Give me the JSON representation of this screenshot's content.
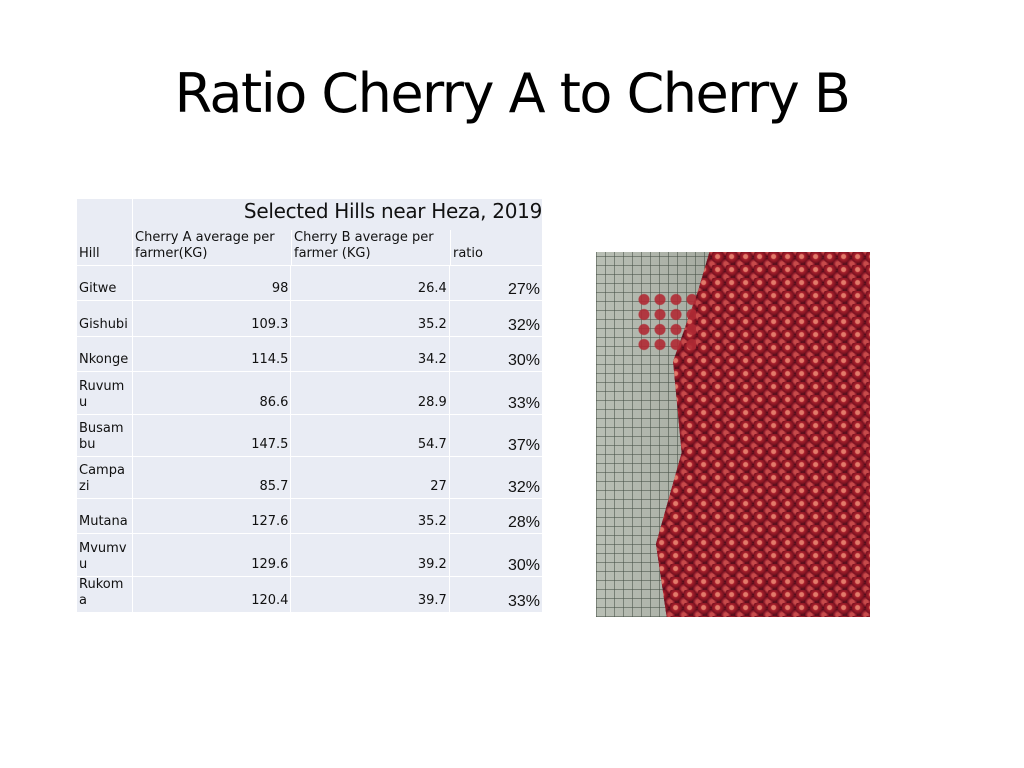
{
  "slide": {
    "title": "Ratio Cherry A to Cherry B"
  },
  "table": {
    "caption": "Selected Hills near Heza, 2019",
    "headers": [
      "Hill",
      "Cherry A  average per farmer(KG)",
      "Cherry B average per farmer (KG)",
      "ratio"
    ],
    "rows": [
      {
        "hill": "Gitwe",
        "a": "98",
        "b": "26.4",
        "ratio": "27%"
      },
      {
        "hill": "Gishubi",
        "a": "109.3",
        "b": "35.2",
        "ratio": "32%"
      },
      {
        "hill": "Nkonge",
        "a": "114.5",
        "b": "34.2",
        "ratio": "30%"
      },
      {
        "hill": "Ruvumu",
        "a": "86.6",
        "b": "28.9",
        "ratio": "33%"
      },
      {
        "hill": "Busambu",
        "a": "147.5",
        "b": "54.7",
        "ratio": "37%"
      },
      {
        "hill": "Campazi",
        "a": "85.7",
        "b": "27",
        "ratio": "32%"
      },
      {
        "hill": "Mutana",
        "a": "127.6",
        "b": "35.2",
        "ratio": "28%"
      },
      {
        "hill": "Mvumvu",
        "a": "129.6",
        "b": "39.2",
        "ratio": "30%"
      },
      {
        "hill": "Rukoma",
        "a": "120.4",
        "b": "39.7",
        "ratio": "33%"
      }
    ]
  },
  "colors": {
    "cell_bg": "#e9ecf4",
    "cherry_red": "#8e1a2a"
  }
}
